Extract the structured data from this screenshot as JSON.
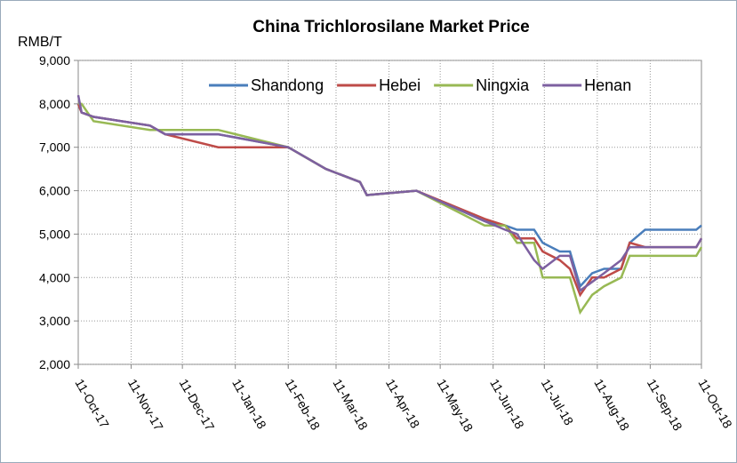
{
  "chart_data": {
    "type": "line",
    "title": "China Trichlorosilane Market Price",
    "y_label": "RMB/T",
    "x": [
      "2017-10-11",
      "2017-10-13",
      "2017-10-20",
      "2017-11-22",
      "2017-12-01",
      "2018-01-01",
      "2018-02-11",
      "2018-03-05",
      "2018-03-25",
      "2018-03-29",
      "2018-04-27",
      "2018-06-06",
      "2018-06-18",
      "2018-06-25",
      "2018-07-05",
      "2018-07-10",
      "2018-07-20",
      "2018-07-26",
      "2018-08-01",
      "2018-08-08",
      "2018-08-15",
      "2018-08-25",
      "2018-08-30",
      "2018-09-08",
      "2018-10-08",
      "2018-10-11"
    ],
    "series": [
      {
        "name": "Shandong",
        "color": "#4a7ebb",
        "values": [
          8000,
          7800,
          7700,
          7500,
          7300,
          7300,
          7000,
          6500,
          6200,
          5900,
          6000,
          5300,
          5200,
          5100,
          5100,
          4800,
          4600,
          4600,
          3800,
          4100,
          4200,
          4200,
          4800,
          5100,
          5100,
          5200
        ]
      },
      {
        "name": "Hebei",
        "color": "#be4b48",
        "values": [
          8000,
          7800,
          7700,
          7500,
          7300,
          7000,
          7000,
          6500,
          6200,
          5900,
          6000,
          5350,
          5200,
          4900,
          4900,
          4600,
          4400,
          4200,
          3600,
          4000,
          4000,
          4200,
          4800,
          4700,
          4700,
          4900
        ]
      },
      {
        "name": "Ningxia",
        "color": "#98b954",
        "values": [
          8000,
          8000,
          7600,
          7400,
          7400,
          7400,
          7000,
          6500,
          6200,
          5900,
          6000,
          5200,
          5200,
          4800,
          4800,
          4000,
          4000,
          4000,
          3200,
          3600,
          3800,
          4000,
          4500,
          4500,
          4500,
          4700
        ]
      },
      {
        "name": "Henan",
        "color": "#7d60a0",
        "values": [
          8200,
          7800,
          7700,
          7500,
          7300,
          7300,
          7000,
          6500,
          6200,
          5900,
          6000,
          5300,
          5100,
          5000,
          4400,
          4200,
          4500,
          4500,
          3700,
          3900,
          4100,
          4400,
          4700,
          4700,
          4700,
          4900
        ]
      }
    ],
    "xlim": [
      "2017-10-11",
      "2018-10-11"
    ],
    "xticks": [
      {
        "value": "2017-10-11",
        "label": "11-Oct-17"
      },
      {
        "value": "2017-11-11",
        "label": "11-Nov-17"
      },
      {
        "value": "2017-12-11",
        "label": "11-Dec-17"
      },
      {
        "value": "2018-01-11",
        "label": "11-Jan-18"
      },
      {
        "value": "2018-02-11",
        "label": "11-Feb-18"
      },
      {
        "value": "2018-03-11",
        "label": "11-Mar-18"
      },
      {
        "value": "2018-04-11",
        "label": "11-Apr-18"
      },
      {
        "value": "2018-05-11",
        "label": "11-May-18"
      },
      {
        "value": "2018-06-11",
        "label": "11-Jun-18"
      },
      {
        "value": "2018-07-11",
        "label": "11-Jul-18"
      },
      {
        "value": "2018-08-11",
        "label": "11-Aug-18"
      },
      {
        "value": "2018-09-11",
        "label": "11-Sep-18"
      },
      {
        "value": "2018-10-11",
        "label": "11-Oct-18"
      }
    ],
    "ylim": [
      2000,
      9000
    ],
    "yticks": [
      {
        "value": 2000,
        "label": "2,000"
      },
      {
        "value": 3000,
        "label": "3,000"
      },
      {
        "value": 4000,
        "label": "4,000"
      },
      {
        "value": 5000,
        "label": "5,000"
      },
      {
        "value": 6000,
        "label": "6,000"
      },
      {
        "value": 7000,
        "label": "7,000"
      },
      {
        "value": 8000,
        "label": "8,000"
      },
      {
        "value": 9000,
        "label": "9,000"
      }
    ],
    "grid": true,
    "legend": "top-right"
  }
}
